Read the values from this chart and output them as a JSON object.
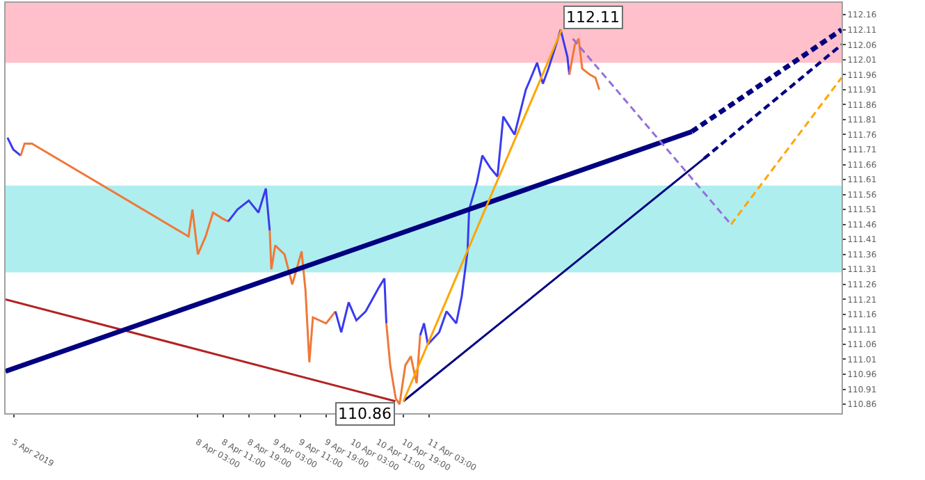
{
  "chart_data": {
    "type": "line",
    "xlim": [
      "2019-04-05T15:30",
      "2019-04-16T11:00"
    ],
    "xticks": [
      {
        "value": "2019-04-05T18:00",
        "label": "5 Apr 2019"
      },
      {
        "value": "2019-04-08T03:00",
        "label": "8 Apr 03:00"
      },
      {
        "value": "2019-04-08T11:00",
        "label": "8 Apr 11:00"
      },
      {
        "value": "2019-04-08T19:00",
        "label": "8 Apr 19:00"
      },
      {
        "value": "2019-04-09T03:00",
        "label": "9 Apr 03:00"
      },
      {
        "value": "2019-04-09T11:00",
        "label": "9 Apr 11:00"
      },
      {
        "value": "2019-04-09T19:00",
        "label": "9 Apr 19:00"
      },
      {
        "value": "2019-04-10T03:00",
        "label": "10 Apr 03:00"
      },
      {
        "value": "2019-04-10T11:00",
        "label": "10 Apr 11:00"
      },
      {
        "value": "2019-04-10T19:00",
        "label": "10 Apr 19:00"
      },
      {
        "value": "2019-04-11T03:00",
        "label": "11 Apr 03:00"
      }
    ],
    "ylim": [
      110.83,
      112.2
    ],
    "yticks": [
      110.86,
      110.91,
      110.96,
      111.01,
      111.06,
      111.11,
      111.16,
      111.21,
      111.26,
      111.31,
      111.36,
      111.41,
      111.46,
      111.51,
      111.56,
      111.61,
      111.66,
      111.71,
      111.76,
      111.81,
      111.86,
      111.91,
      111.96,
      112.01,
      112.06,
      112.11,
      112.16
    ],
    "grid": false,
    "bands": [
      {
        "axis": "y",
        "from": 112.0,
        "to": 112.2,
        "color": "#ffc0cb"
      },
      {
        "axis": "y",
        "from": 111.3,
        "to": 111.59,
        "color": "#afeeee"
      }
    ],
    "series": [
      {
        "color": "#3a3af0",
        "x": [
          "2019-04-05T16:06",
          "2019-04-05T17:54",
          "2019-04-05T20:12"
        ],
        "values": [
          111.75,
          111.71,
          111.69
        ]
      },
      {
        "color": "#f07838",
        "x": [
          "2019-04-05T20:12",
          "2019-04-05T21:24",
          "2019-04-05T23:42",
          "2019-04-08T00:18",
          "2019-04-08T01:30",
          "2019-04-08T03:12",
          "2019-04-08T05:36",
          "2019-04-08T07:54",
          "2019-04-08T10:48",
          "2019-04-08T12:36"
        ],
        "values": [
          111.69,
          111.73,
          111.73,
          111.42,
          111.51,
          111.36,
          111.42,
          111.5,
          111.48,
          111.47
        ]
      },
      {
        "color": "#3a3af0",
        "x": [
          "2019-04-08T12:36",
          "2019-04-08T15:30",
          "2019-04-08T19:00",
          "2019-04-08T22:00",
          "2019-04-09T00:18",
          "2019-04-09T01:30"
        ],
        "values": [
          111.47,
          111.51,
          111.54,
          111.5,
          111.58,
          111.44
        ]
      },
      {
        "color": "#f07838",
        "x": [
          "2019-04-09T01:30",
          "2019-04-09T02:00",
          "2019-04-09T03:12",
          "2019-04-09T06:06",
          "2019-04-09T08:30",
          "2019-04-09T11:24",
          "2019-04-09T12:36",
          "2019-04-09T13:48",
          "2019-04-09T14:54",
          "2019-04-09T19:00",
          "2019-04-09T21:54"
        ],
        "values": [
          111.44,
          111.31,
          111.39,
          111.36,
          111.26,
          111.37,
          111.24,
          111.0,
          111.15,
          111.13,
          111.17
        ]
      },
      {
        "color": "#3a3af0",
        "x": [
          "2019-04-09T21:54",
          "2019-04-09T23:42",
          "2019-04-10T02:00",
          "2019-04-10T04:24",
          "2019-04-10T07:18",
          "2019-04-10T11:24",
          "2019-04-10T13:06",
          "2019-04-10T13:42"
        ],
        "values": [
          111.17,
          111.1,
          111.2,
          111.14,
          111.17,
          111.25,
          111.28,
          111.13
        ]
      },
      {
        "color": "#f07838",
        "x": [
          "2019-04-10T13:42",
          "2019-04-10T14:54",
          "2019-04-10T16:36",
          "2019-04-10T17:48",
          "2019-04-10T19:36",
          "2019-04-10T21:18",
          "2019-04-10T23:06",
          "2019-04-11T00:12"
        ],
        "values": [
          111.13,
          110.99,
          110.88,
          110.86,
          110.99,
          111.02,
          110.93,
          111.09
        ]
      },
      {
        "color": "#3a3af0",
        "x": [
          "2019-04-11T00:12",
          "2019-04-11T01:24",
          "2019-04-11T02:36",
          "2019-04-11T06:06",
          "2019-04-11T08:24",
          "2019-04-11T11:24",
          "2019-04-11T13:06",
          "2019-04-11T14:54",
          "2019-04-11T15:24",
          "2019-04-11T17:48",
          "2019-04-11T19:30",
          "2019-04-11T21:54",
          "2019-04-12T00:12",
          "2019-04-12T02:00",
          "2019-04-12T05:30",
          "2019-04-12T09:00",
          "2019-04-12T10:12",
          "2019-04-12T12:30",
          "2019-04-12T14:18",
          "2019-04-12T16:00",
          "2019-04-12T17:48",
          "2019-04-12T19:48",
          "2019-04-12T21:54",
          "2019-04-12T22:30"
        ],
        "values": [
          111.09,
          111.13,
          111.06,
          111.1,
          111.17,
          111.13,
          111.22,
          111.37,
          111.51,
          111.6,
          111.69,
          111.65,
          111.62,
          111.82,
          111.76,
          111.91,
          111.94,
          112.0,
          111.93,
          111.98,
          112.04,
          112.11,
          112.02,
          111.96
        ]
      },
      {
        "color": "#f07838",
        "x": [
          "2019-04-12T22:30",
          "2019-04-13T00:12",
          "2019-04-13T01:24",
          "2019-04-13T02:30",
          "2019-04-13T04:54",
          "2019-04-13T06:36",
          "2019-04-13T07:48"
        ],
        "values": [
          111.96,
          112.06,
          112.08,
          111.98,
          111.96,
          111.95,
          111.91
        ]
      },
      {
        "color": "#b22222",
        "line_style": "solid",
        "x": [
          "2019-04-05T15:30",
          "2019-04-10T16:30"
        ],
        "values": [
          111.21,
          110.87
        ]
      },
      {
        "color": "#000080",
        "line_style": "solid",
        "x": [
          "2019-04-05T15:30",
          "2019-04-14T12:30"
        ],
        "values": [
          110.97,
          111.77
        ]
      },
      {
        "color": "#000080",
        "line_style": "dashed",
        "x": [
          "2019-04-14T12:30",
          "2019-04-16T11:00"
        ],
        "values": [
          111.77,
          112.11
        ]
      },
      {
        "color": "#000080",
        "line_style": "solid",
        "x": [
          "2019-04-10T19:00",
          "2019-04-14T16:18"
        ],
        "values": [
          110.87,
          111.68
        ]
      },
      {
        "color": "#000080",
        "line_style": "dashed",
        "x": [
          "2019-04-14T16:18",
          "2019-04-16T11:00"
        ],
        "values": [
          111.68,
          112.06
        ]
      },
      {
        "color": "#ffa500",
        "line_style": "solid",
        "x": [
          "2019-04-10T19:00",
          "2019-04-12T20:06"
        ],
        "values": [
          110.87,
          112.11
        ]
      },
      {
        "color": "#9370db",
        "line_style": "dashed",
        "x": [
          "2019-04-12T23:36",
          "2019-04-15T00:42"
        ],
        "values": [
          112.08,
          111.46
        ]
      },
      {
        "color": "#ffa500",
        "line_style": "dashed",
        "x": [
          "2019-04-15T00:42",
          "2019-04-16T11:00"
        ],
        "values": [
          111.46,
          111.95
        ]
      }
    ],
    "annotations": [
      {
        "text": "112.11",
        "x": "2019-04-12T19:48",
        "y": 112.11
      },
      {
        "text": "110.86",
        "x": "2019-04-10T17:48",
        "y": 110.86
      }
    ]
  }
}
